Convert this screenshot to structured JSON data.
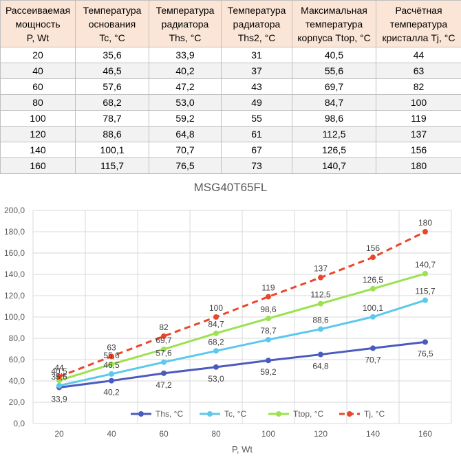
{
  "table": {
    "headers": [
      [
        "Рассеиваемая",
        "мощность",
        "P, Wt"
      ],
      [
        "Температура",
        "основания",
        "Tc, °C"
      ],
      [
        "Температура",
        "радиатора",
        "Ths, °C"
      ],
      [
        "Температура",
        "радиатора",
        "Ths2, °C"
      ],
      [
        "Максимальная",
        "температура",
        "корпуса Ttop, °C"
      ],
      [
        "Расчётная",
        "температура",
        "кристалла Tj, °C"
      ]
    ],
    "rows": [
      [
        "20",
        "35,6",
        "33,9",
        "31",
        "40,5",
        "44"
      ],
      [
        "40",
        "46,5",
        "40,2",
        "37",
        "55,6",
        "63"
      ],
      [
        "60",
        "57,6",
        "47,2",
        "43",
        "69,7",
        "82"
      ],
      [
        "80",
        "68,2",
        "53,0",
        "49",
        "84,7",
        "100"
      ],
      [
        "100",
        "78,7",
        "59,2",
        "55",
        "98,6",
        "119"
      ],
      [
        "120",
        "88,6",
        "64,8",
        "61",
        "112,5",
        "137"
      ],
      [
        "140",
        "100,1",
        "70,7",
        "67",
        "126,5",
        "156"
      ],
      [
        "160",
        "115,7",
        "76,5",
        "73",
        "140,7",
        "180"
      ]
    ]
  },
  "chart_data": {
    "type": "line",
    "title": "MSG40T65FL",
    "xlabel": "P, Wt",
    "ylabel": "",
    "x": [
      20,
      40,
      60,
      80,
      100,
      120,
      140,
      160
    ],
    "ylim": [
      0,
      200
    ],
    "yticks": [
      "0,0",
      "20,0",
      "40,0",
      "60,0",
      "80,0",
      "100,0",
      "120,0",
      "140,0",
      "160,0",
      "180,0",
      "200,0"
    ],
    "xticks": [
      "20",
      "40",
      "60",
      "80",
      "100",
      "120",
      "140",
      "160"
    ],
    "grid": true,
    "legend": "bottom",
    "series": [
      {
        "name": "Ths, °C",
        "color": "#4a5bbf",
        "dash": false,
        "label_position": "below",
        "values": [
          33.9,
          40.2,
          47.2,
          53.0,
          59.2,
          64.8,
          70.7,
          76.5
        ],
        "labels": [
          "33,9",
          "40,2",
          "47,2",
          "53,0",
          "59,2",
          "64,8",
          "70,7",
          "76,5"
        ]
      },
      {
        "name": "Tc, °C",
        "color": "#5bc8ec",
        "dash": false,
        "label_position": "above",
        "values": [
          35.6,
          46.5,
          57.6,
          68.2,
          78.7,
          88.6,
          100.1,
          115.7
        ],
        "labels": [
          "35,6",
          "46,5",
          "57,6",
          "68,2",
          "78,7",
          "88,6",
          "100,1",
          "115,7"
        ]
      },
      {
        "name": "Ttop, °C",
        "color": "#9be24e",
        "dash": false,
        "label_position": "above",
        "values": [
          40.5,
          55.6,
          69.7,
          84.7,
          98.6,
          112.5,
          126.5,
          140.7
        ],
        "labels": [
          "40,5",
          "55,6",
          "69,7",
          "84,7",
          "98,6",
          "112,5",
          "126,5",
          "140,7"
        ]
      },
      {
        "name": "Tj, °C",
        "color": "#e8472b",
        "dash": true,
        "label_position": "above",
        "values": [
          44,
          63,
          82,
          100,
          119,
          137,
          156,
          180
        ],
        "labels": [
          "44",
          "63",
          "82",
          "100",
          "119",
          "137",
          "156",
          "180"
        ]
      }
    ]
  }
}
